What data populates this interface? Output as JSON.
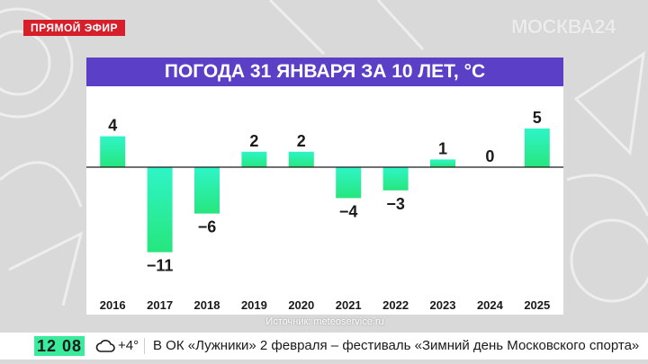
{
  "live_badge": "ПРЯМОЙ ЭФИР",
  "channel": "МОСКВА24",
  "chart_data": {
    "type": "bar",
    "title": "ПОГОДА 31 ЯНВАРЯ ЗА 10 ЛЕТ, °С",
    "categories": [
      "2016",
      "2017",
      "2018",
      "2019",
      "2020",
      "2021",
      "2022",
      "2023",
      "2024",
      "2025"
    ],
    "values": [
      4,
      -11,
      -6,
      2,
      2,
      -4,
      -3,
      1,
      0,
      5
    ],
    "data_labels": [
      "4",
      "−11",
      "−6",
      "2",
      "2",
      "−4",
      "−3",
      "1",
      "0",
      "5"
    ],
    "xlabel": "",
    "ylabel": "",
    "grid": false,
    "colors": {
      "top": "#2ff5c8",
      "bottom": "#26e67d",
      "header": "#5b3fc7"
    }
  },
  "source": "Источник: meteoservice.ru",
  "ticker": {
    "time": "12 08",
    "weather_icon": "cloud-icon",
    "temperature": "+4°",
    "headline": "В ОК «Лужники» 2 февраля – фестиваль «Зимний день Московского спорта»"
  }
}
